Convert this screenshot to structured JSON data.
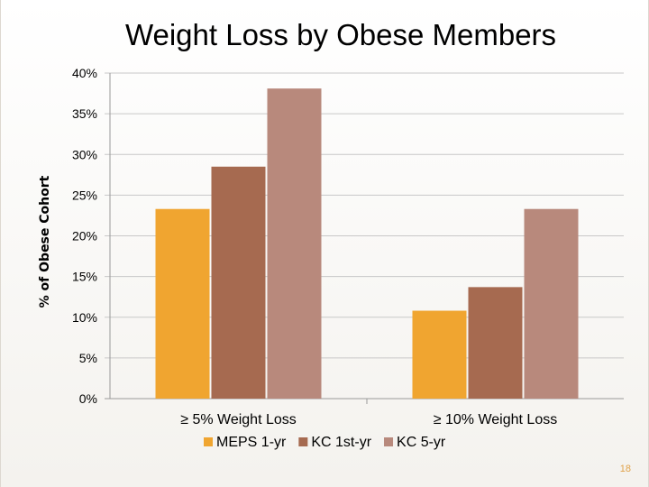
{
  "chart_data": {
    "type": "bar",
    "title": "Weight Loss by Obese Members",
    "ylabel": "% of Obese Cohort",
    "xlabel": "",
    "categories": [
      "≥ 5% Weight Loss",
      "≥ 10% Weight Loss"
    ],
    "series": [
      {
        "name": "MEPS 1-yr",
        "values": [
          23.3,
          10.8
        ],
        "color": "#f0a530"
      },
      {
        "name": "KC 1st-yr",
        "values": [
          28.5,
          13.7
        ],
        "color": "#a66a50"
      },
      {
        "name": "KC 5-yr",
        "values": [
          38.1,
          23.3
        ],
        "color": "#b8897c"
      }
    ],
    "ylim": [
      0,
      40
    ],
    "yticks": [
      0,
      5,
      10,
      15,
      20,
      25,
      30,
      35,
      40
    ],
    "ytick_labels": [
      "0%",
      "5%",
      "10%",
      "15%",
      "20%",
      "25%",
      "30%",
      "35%",
      "40%"
    ],
    "grid": true,
    "legend": "bottom"
  },
  "page_number": "18"
}
